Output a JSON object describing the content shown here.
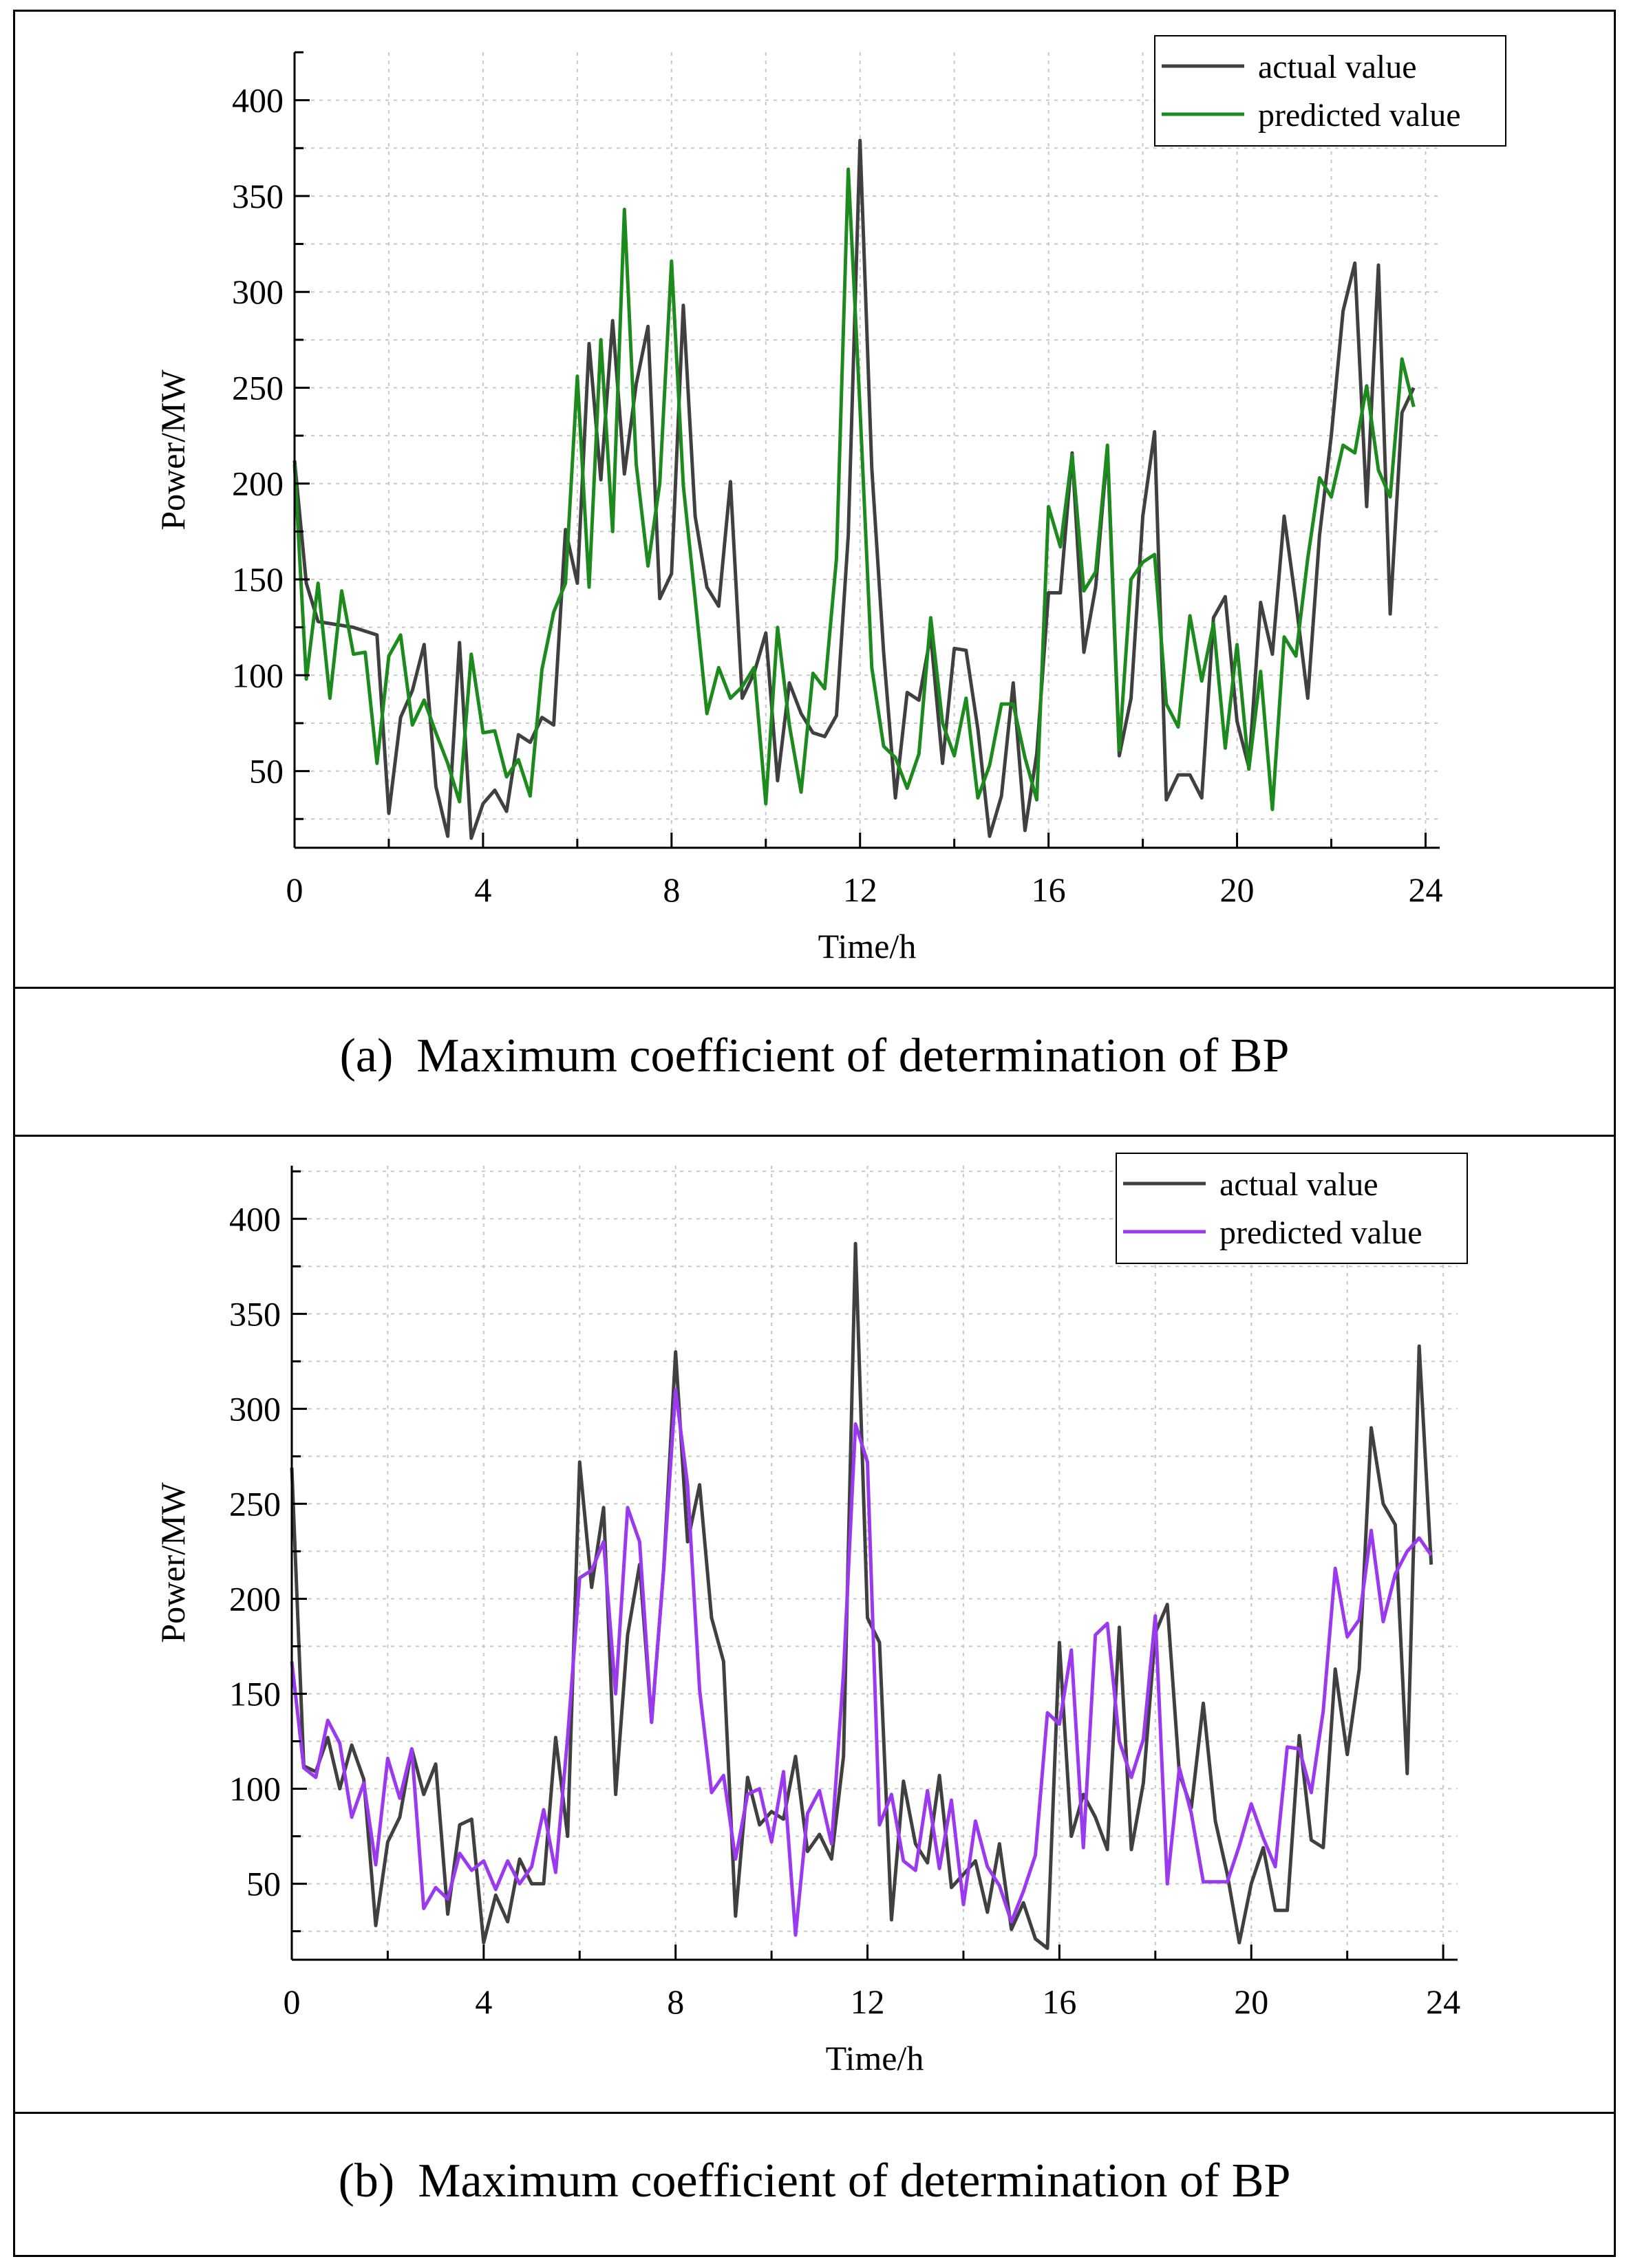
{
  "chart_data": [
    {
      "type": "line",
      "panel": "a",
      "caption": {
        "label": "(a)",
        "text": "Maximum coefficient of determination of BP"
      },
      "xlabel": "Time/h",
      "ylabel": "Power/MW",
      "xlim": [
        0,
        24.3
      ],
      "ylim": [
        10,
        425
      ],
      "xticks": [
        0,
        4,
        8,
        12,
        16,
        20,
        24
      ],
      "yticks": [
        50,
        100,
        150,
        200,
        250,
        300,
        350,
        400
      ],
      "grid": true,
      "legend": "top-right",
      "x_step": 0.25,
      "series": [
        {
          "name": "actual value",
          "color": "#404040",
          "values": [
            212,
            148,
            128,
            127,
            126,
            125,
            123,
            121,
            28,
            78,
            92,
            116,
            42,
            16,
            117,
            15,
            33,
            40,
            29,
            69,
            65,
            78,
            74,
            176,
            148,
            273,
            202,
            285,
            205,
            252,
            282,
            140,
            153,
            293,
            183,
            146,
            136,
            201,
            88,
            101,
            122,
            45,
            96,
            80,
            70,
            68,
            79,
            173,
            379,
            208,
            112,
            36,
            91,
            87,
            121,
            54,
            114,
            113,
            72,
            16,
            37,
            96,
            19,
            59,
            143,
            143,
            216,
            112,
            146,
            218,
            58,
            88,
            183,
            227,
            35,
            48,
            48,
            36,
            130,
            141,
            76,
            52,
            138,
            111,
            183,
            138,
            88,
            173,
            225,
            290,
            315,
            188,
            314,
            132,
            237,
            250
          ]
        },
        {
          "name": "predicted value",
          "color": "#1c8a1c",
          "values": [
            210,
            98,
            148,
            88,
            144,
            111,
            112,
            54,
            110,
            121,
            74,
            87,
            70,
            54,
            34,
            111,
            70,
            71,
            47,
            56,
            37,
            103,
            133,
            148,
            256,
            146,
            275,
            175,
            343,
            210,
            157,
            200,
            316,
            199,
            140,
            80,
            104,
            88,
            94,
            104,
            33,
            125,
            74,
            39,
            101,
            93,
            161,
            364,
            239,
            104,
            63,
            57,
            41,
            59,
            130,
            75,
            58,
            88,
            36,
            53,
            85,
            85,
            57,
            35,
            188,
            167,
            215,
            144,
            154,
            220,
            61,
            150,
            159,
            163,
            85,
            73,
            131,
            97,
            127,
            62,
            116,
            51,
            102,
            30,
            120,
            110,
            161,
            203,
            193,
            220,
            216,
            251,
            207,
            193,
            265,
            240
          ]
        }
      ]
    },
    {
      "type": "line",
      "panel": "b",
      "caption": {
        "label": "(b)",
        "text": "Maximum coefficient of determination of BP"
      },
      "xlabel": "Time/h",
      "ylabel": "Power/MW",
      "xlim": [
        0,
        24.3
      ],
      "ylim": [
        10,
        428
      ],
      "xticks": [
        0,
        4,
        8,
        12,
        16,
        20,
        24
      ],
      "yticks": [
        50,
        100,
        150,
        200,
        250,
        300,
        350,
        400
      ],
      "grid": true,
      "legend": "top-right",
      "x_step": 0.25,
      "series": [
        {
          "name": "actual value",
          "color": "#404040",
          "values": [
            269,
            112,
            109,
            127,
            100,
            123,
            105,
            28,
            72,
            85,
            121,
            97,
            113,
            34,
            81,
            84,
            19,
            44,
            30,
            63,
            50,
            50,
            127,
            75,
            272,
            206,
            248,
            97,
            181,
            218,
            135,
            215,
            330,
            230,
            260,
            190,
            167,
            33,
            106,
            81,
            88,
            84,
            117,
            67,
            76,
            63,
            117,
            387,
            190,
            177,
            31,
            104,
            71,
            61,
            107,
            48,
            55,
            62,
            35,
            71,
            26,
            40,
            21,
            16,
            177,
            75,
            97,
            85,
            68,
            185,
            68,
            103,
            182,
            197,
            108,
            90,
            145,
            83,
            55,
            19,
            50,
            69,
            36,
            36,
            128,
            73,
            69,
            163,
            118,
            163,
            290,
            250,
            239,
            108,
            333,
            218
          ]
        },
        {
          "name": "predicted value",
          "color": "#9a39f0",
          "values": [
            167,
            111,
            106,
            136,
            124,
            85,
            103,
            60,
            116,
            95,
            121,
            37,
            48,
            42,
            66,
            57,
            62,
            47,
            62,
            50,
            59,
            89,
            56,
            127,
            211,
            215,
            230,
            150,
            248,
            230,
            135,
            215,
            310,
            260,
            152,
            98,
            107,
            63,
            97,
            100,
            72,
            109,
            23,
            87,
            99,
            71,
            161,
            292,
            272,
            81,
            97,
            62,
            57,
            99,
            58,
            94,
            39,
            83,
            59,
            49,
            30,
            46,
            65,
            140,
            134,
            173,
            69,
            181,
            187,
            125,
            106,
            126,
            191,
            50,
            111,
            87,
            51,
            51,
            51,
            70,
            92,
            74,
            59,
            122,
            121,
            98,
            141,
            216,
            180,
            189,
            236,
            188,
            213,
            225,
            232,
            223
          ]
        }
      ]
    }
  ]
}
